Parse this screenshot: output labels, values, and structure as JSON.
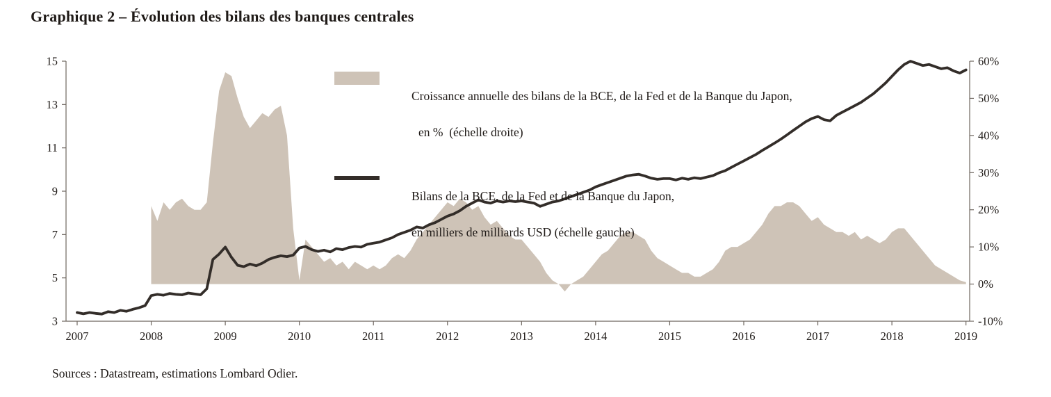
{
  "page": {
    "title": "Graphique 2 – Évolution des bilans des banques centrales",
    "source": "Sources : Datastream, estimations Lombard Odier."
  },
  "legend": {
    "area": {
      "line1": "Croissance annuelle des bilans de la BCE, de la Fed et de la Banque du Japon,",
      "line2": "en %  (échelle droite)"
    },
    "line": {
      "line1": "Bilans de la BCE, de la Fed et de la Banque du Japon,",
      "line2": "en milliers de milliards USD (échelle gauche)"
    }
  },
  "colors": {
    "background": "#ffffff",
    "area_fill": "#cec3b7",
    "line_stroke": "#332d29",
    "axis": "#6e665f",
    "text": "#1f1a17"
  },
  "chart_data": {
    "type": "area+line",
    "title": "Graphique 2 – Évolution des bilans des banques centrales",
    "grid": false,
    "legend_position": "top-center-inside",
    "x_unit": "année",
    "x_range": [
      2006.85,
      2019.05
    ],
    "x_ticks": [
      2007,
      2008,
      2009,
      2010,
      2011,
      2012,
      2013,
      2014,
      2015,
      2016,
      2017,
      2018,
      2019
    ],
    "left_axis": {
      "description": "Bilans de la BCE, de la Fed et de la Banque du Japon, en milliers de milliards USD (échelle gauche)",
      "range": [
        3,
        15
      ],
      "ticks": [
        15,
        13,
        11,
        9,
        7,
        5,
        3
      ]
    },
    "right_axis": {
      "description": "Croissance annuelle des bilans, en % (échelle droite)",
      "range": [
        -10,
        60
      ],
      "ticks": [
        60,
        50,
        40,
        30,
        20,
        10,
        0,
        -10
      ],
      "suffix": "%"
    },
    "series": [
      {
        "name": "Croissance annuelle des bilans de la BCE, de la Fed et de la Banque du Japon, en % (échelle droite)",
        "type": "area",
        "axis": "right",
        "x_start": 2008.0,
        "x_step": 0.0833333,
        "values": [
          21,
          17,
          22,
          20,
          22,
          23,
          21,
          20,
          20,
          22,
          38,
          52,
          57,
          56,
          50,
          45,
          42,
          44,
          46,
          45,
          47,
          48,
          40,
          15,
          1,
          12,
          10,
          8,
          6,
          7,
          5,
          6,
          4,
          6,
          5,
          4,
          5,
          4,
          5,
          7,
          8,
          7,
          9,
          12,
          14,
          16,
          18,
          20,
          22,
          21,
          23,
          22,
          20,
          21,
          18,
          16,
          17,
          15,
          13,
          12,
          12,
          10,
          8,
          6,
          3,
          1,
          0,
          -2,
          0,
          1,
          2,
          4,
          6,
          8,
          9,
          11,
          13,
          14,
          14,
          13,
          12,
          9,
          7,
          6,
          5,
          4,
          3,
          3,
          2,
          2,
          3,
          4,
          6,
          9,
          10,
          10,
          11,
          12,
          14,
          16,
          19,
          21,
          21,
          22,
          22,
          21,
          19,
          17,
          18,
          16,
          15,
          14,
          14,
          13,
          14,
          12,
          13,
          12,
          11,
          12,
          14,
          15,
          15,
          13,
          11,
          9,
          7,
          5,
          4,
          3,
          2,
          1,
          0.5
        ]
      },
      {
        "name": "Bilans de la BCE, de la Fed et de la Banque du Japon, en milliers de milliards USD (échelle gauche)",
        "type": "line",
        "axis": "left",
        "x_start": 2007.0,
        "x_step": 0.0833333,
        "values": [
          3.4,
          3.34,
          3.4,
          3.36,
          3.33,
          3.44,
          3.4,
          3.5,
          3.46,
          3.55,
          3.62,
          3.72,
          4.18,
          4.24,
          4.2,
          4.28,
          4.24,
          4.22,
          4.3,
          4.26,
          4.22,
          4.5,
          5.85,
          6.1,
          6.42,
          5.95,
          5.58,
          5.52,
          5.64,
          5.56,
          5.68,
          5.85,
          5.95,
          6.02,
          5.98,
          6.05,
          6.38,
          6.45,
          6.3,
          6.22,
          6.28,
          6.2,
          6.35,
          6.3,
          6.4,
          6.45,
          6.42,
          6.55,
          6.6,
          6.65,
          6.75,
          6.85,
          7.0,
          7.1,
          7.2,
          7.35,
          7.3,
          7.45,
          7.55,
          7.7,
          7.85,
          7.95,
          8.1,
          8.3,
          8.45,
          8.6,
          8.5,
          8.45,
          8.55,
          8.5,
          8.55,
          8.52,
          8.55,
          8.5,
          8.45,
          8.3,
          8.4,
          8.5,
          8.55,
          8.65,
          8.75,
          8.85,
          8.95,
          9.05,
          9.2,
          9.3,
          9.4,
          9.5,
          9.6,
          9.7,
          9.75,
          9.78,
          9.7,
          9.6,
          9.55,
          9.58,
          9.58,
          9.52,
          9.6,
          9.55,
          9.62,
          9.58,
          9.65,
          9.72,
          9.85,
          9.95,
          10.1,
          10.25,
          10.4,
          10.55,
          10.7,
          10.88,
          11.05,
          11.22,
          11.4,
          11.6,
          11.8,
          12.0,
          12.2,
          12.35,
          12.45,
          12.3,
          12.25,
          12.5,
          12.65,
          12.8,
          12.95,
          13.1,
          13.3,
          13.5,
          13.75,
          14.0,
          14.3,
          14.6,
          14.85,
          15.0,
          14.9,
          14.8,
          14.85,
          14.75,
          14.65,
          14.7,
          14.55,
          14.45,
          14.6
        ]
      }
    ]
  }
}
